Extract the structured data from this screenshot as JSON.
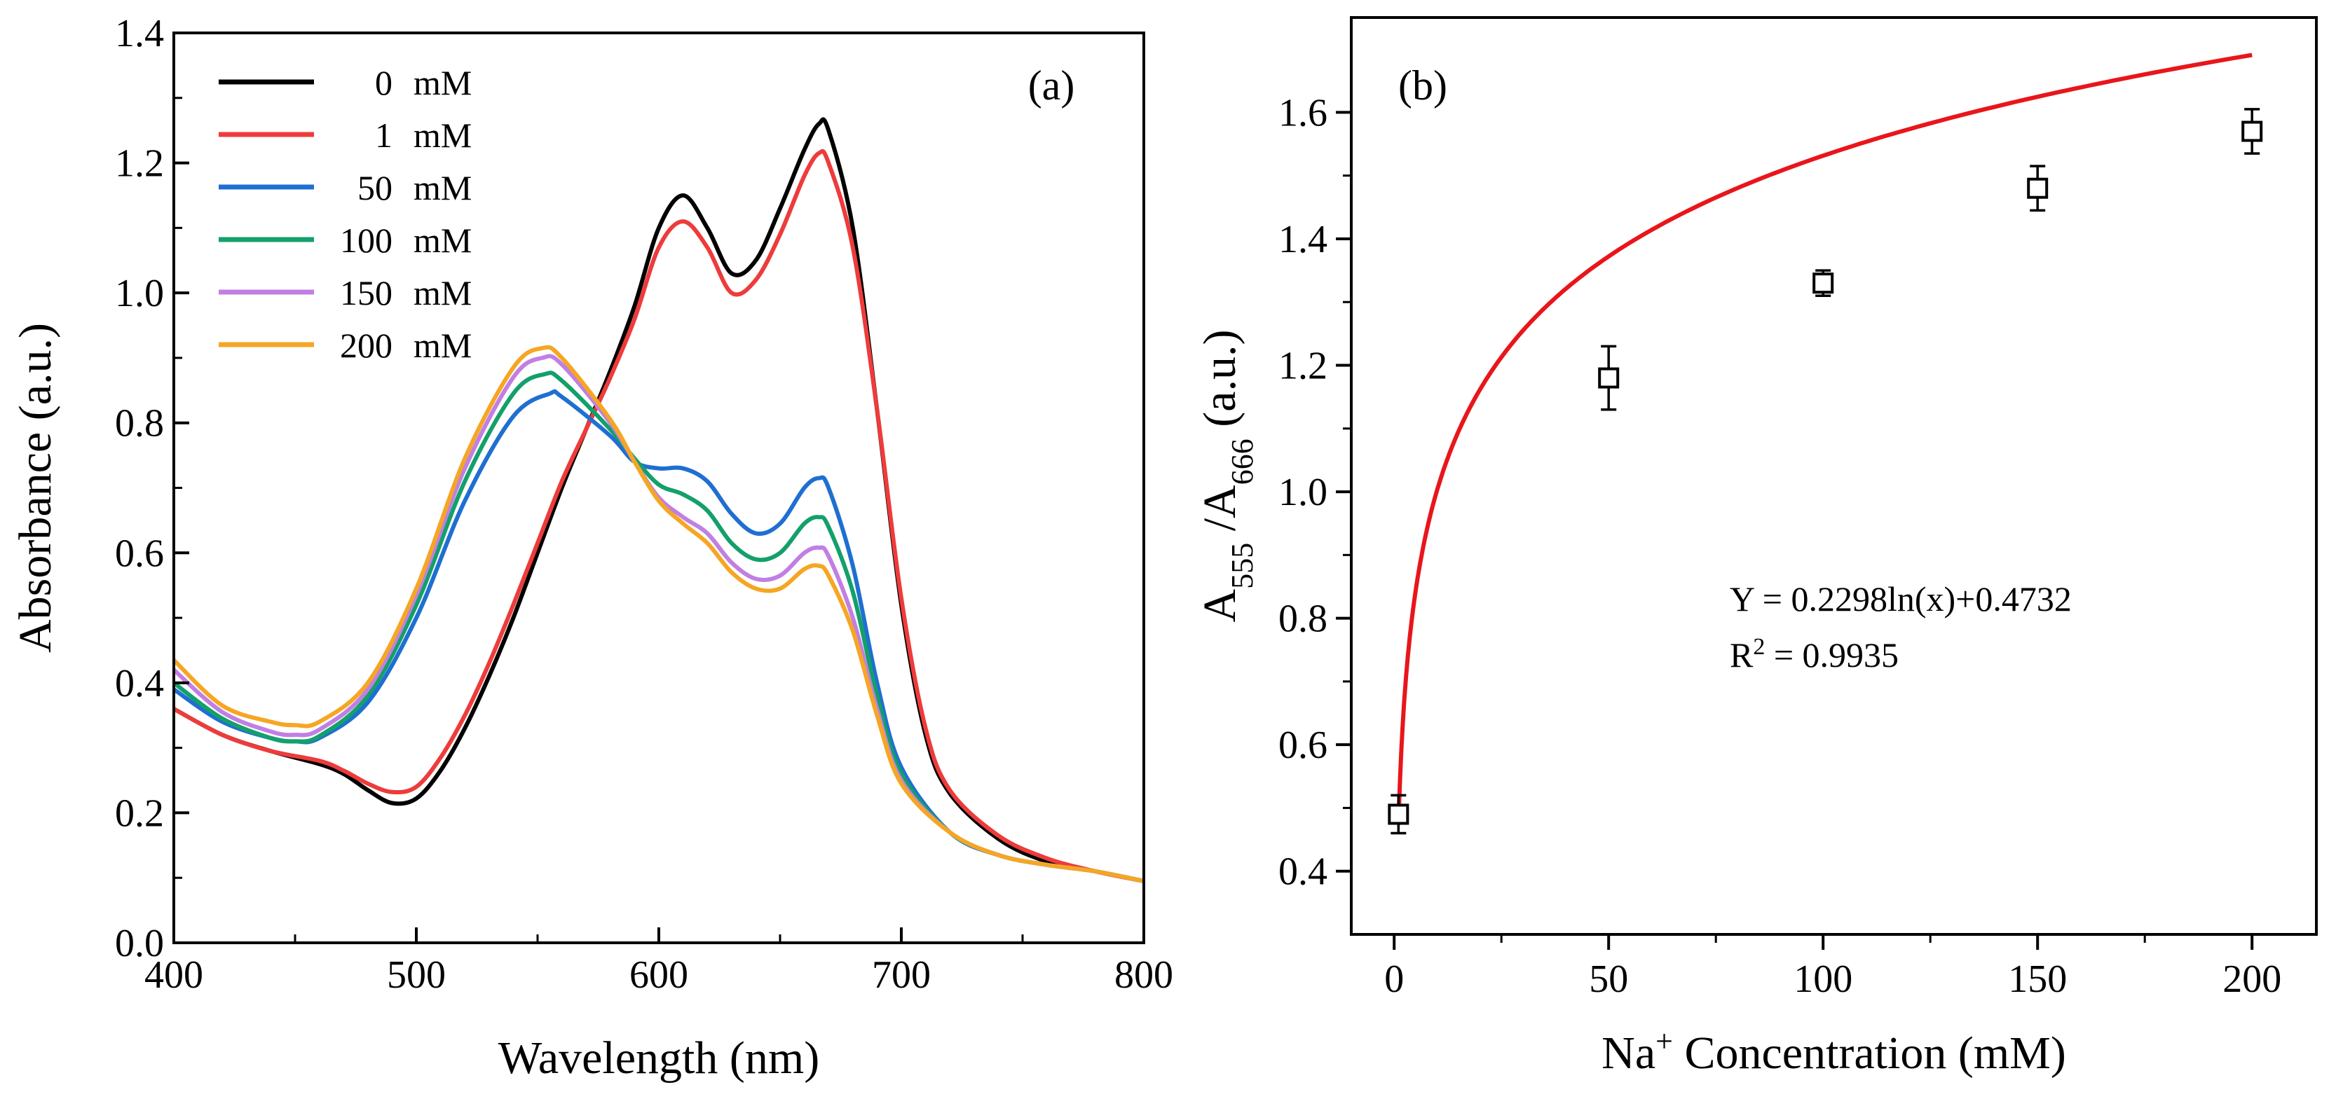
{
  "chart_data": [
    {
      "panel": "(a)",
      "type": "line",
      "xlabel": "Wavelength (nm)",
      "ylabel": "Absorbance (a.u.)",
      "xlim": [
        400,
        800
      ],
      "ylim": [
        0.0,
        1.4
      ],
      "xticks": [
        400,
        500,
        600,
        700,
        800
      ],
      "yticks": [
        0.0,
        0.2,
        0.4,
        0.6,
        0.8,
        1.0,
        1.2,
        1.4
      ],
      "xtick_labels": [
        "400",
        "500",
        "600",
        "700",
        "800"
      ],
      "ytick_labels": [
        "0.0",
        "0.2",
        "0.4",
        "0.6",
        "0.8",
        "1.0",
        "1.2",
        "1.4"
      ],
      "legend_position": "top-left",
      "series": [
        {
          "name": "0",
          "unit": "mM",
          "color": "#000000",
          "x": [
            400,
            420,
            440,
            460,
            470,
            480,
            490,
            500,
            510,
            520,
            530,
            540,
            550,
            560,
            570,
            580,
            590,
            600,
            610,
            620,
            630,
            640,
            650,
            660,
            666,
            670,
            680,
            690,
            700,
            710,
            720,
            740,
            760,
            780,
            800
          ],
          "y": [
            0.36,
            0.32,
            0.295,
            0.275,
            0.26,
            0.235,
            0.215,
            0.222,
            0.265,
            0.33,
            0.41,
            0.5,
            0.6,
            0.7,
            0.79,
            0.88,
            0.98,
            1.1,
            1.15,
            1.1,
            1.03,
            1.05,
            1.13,
            1.22,
            1.26,
            1.25,
            1.1,
            0.82,
            0.52,
            0.32,
            0.23,
            0.16,
            0.125,
            0.11,
            0.095
          ]
        },
        {
          "name": "1",
          "unit": "mM",
          "color": "#EE3B3B",
          "x": [
            400,
            420,
            440,
            460,
            470,
            480,
            490,
            500,
            510,
            520,
            530,
            540,
            550,
            560,
            570,
            580,
            590,
            600,
            610,
            620,
            630,
            640,
            650,
            660,
            666,
            670,
            680,
            690,
            700,
            710,
            720,
            740,
            760,
            780,
            800
          ],
          "y": [
            0.36,
            0.32,
            0.295,
            0.28,
            0.265,
            0.245,
            0.232,
            0.24,
            0.285,
            0.35,
            0.43,
            0.52,
            0.615,
            0.71,
            0.79,
            0.87,
            0.96,
            1.07,
            1.11,
            1.07,
            1.0,
            1.02,
            1.09,
            1.18,
            1.215,
            1.2,
            1.07,
            0.82,
            0.53,
            0.33,
            0.235,
            0.165,
            0.13,
            0.11,
            0.095
          ]
        },
        {
          "name": "50",
          "unit": "mM",
          "color": "#1F6FD1",
          "x": [
            400,
            420,
            440,
            450,
            460,
            480,
            500,
            520,
            540,
            555,
            560,
            580,
            590,
            600,
            610,
            620,
            630,
            640,
            650,
            660,
            666,
            670,
            680,
            690,
            700,
            720,
            740,
            760,
            780,
            800
          ],
          "y": [
            0.39,
            0.34,
            0.315,
            0.31,
            0.315,
            0.37,
            0.5,
            0.68,
            0.81,
            0.845,
            0.84,
            0.78,
            0.74,
            0.73,
            0.73,
            0.71,
            0.66,
            0.63,
            0.645,
            0.7,
            0.715,
            0.7,
            0.58,
            0.4,
            0.27,
            0.17,
            0.135,
            0.12,
            0.11,
            0.095
          ]
        },
        {
          "name": "100",
          "unit": "mM",
          "color": "#13A06A",
          "x": [
            400,
            420,
            440,
            450,
            460,
            480,
            500,
            520,
            540,
            553,
            560,
            580,
            590,
            600,
            610,
            620,
            630,
            640,
            650,
            660,
            666,
            670,
            680,
            690,
            700,
            720,
            740,
            760,
            780,
            800
          ],
          "y": [
            0.4,
            0.345,
            0.315,
            0.31,
            0.318,
            0.38,
            0.52,
            0.71,
            0.845,
            0.875,
            0.865,
            0.79,
            0.745,
            0.705,
            0.69,
            0.665,
            0.615,
            0.59,
            0.6,
            0.645,
            0.655,
            0.64,
            0.54,
            0.38,
            0.26,
            0.17,
            0.135,
            0.12,
            0.11,
            0.095
          ]
        },
        {
          "name": "150",
          "unit": "mM",
          "color": "#C17FE3",
          "x": [
            400,
            420,
            440,
            450,
            460,
            480,
            500,
            520,
            540,
            552,
            560,
            580,
            590,
            600,
            610,
            620,
            630,
            640,
            650,
            660,
            666,
            670,
            680,
            690,
            700,
            720,
            740,
            760,
            780,
            800
          ],
          "y": [
            0.42,
            0.355,
            0.325,
            0.32,
            0.328,
            0.39,
            0.535,
            0.73,
            0.87,
            0.9,
            0.89,
            0.8,
            0.74,
            0.685,
            0.655,
            0.63,
            0.585,
            0.56,
            0.565,
            0.6,
            0.608,
            0.595,
            0.5,
            0.36,
            0.25,
            0.17,
            0.135,
            0.12,
            0.11,
            0.095
          ]
        },
        {
          "name": "200",
          "unit": "mM",
          "color": "#F5A623",
          "x": [
            400,
            420,
            440,
            450,
            460,
            480,
            500,
            520,
            540,
            552,
            560,
            580,
            590,
            600,
            610,
            620,
            630,
            640,
            650,
            660,
            666,
            670,
            680,
            690,
            700,
            720,
            740,
            760,
            780,
            800
          ],
          "y": [
            0.435,
            0.365,
            0.34,
            0.335,
            0.34,
            0.4,
            0.545,
            0.745,
            0.885,
            0.915,
            0.9,
            0.805,
            0.74,
            0.68,
            0.645,
            0.615,
            0.57,
            0.545,
            0.545,
            0.575,
            0.58,
            0.565,
            0.48,
            0.35,
            0.245,
            0.17,
            0.135,
            0.12,
            0.11,
            0.095
          ]
        }
      ]
    },
    {
      "panel": "(b)",
      "type": "scatter",
      "xlabel_main": "Na",
      "xlabel_sup": "+",
      "xlabel_rest": " Concentration (mM)",
      "ylabel_a": "A",
      "ylabel_sub1": "555",
      "ylabel_slash": " /A",
      "ylabel_sub2": "666",
      "ylabel_rest": " (a.u.)",
      "xlim": [
        -10,
        215
      ],
      "ylim": [
        0.3,
        1.75
      ],
      "xticks": [
        0,
        50,
        100,
        150,
        200
      ],
      "yticks": [
        0.4,
        0.6,
        0.8,
        1.0,
        1.2,
        1.4,
        1.6
      ],
      "xtick_labels": [
        "0",
        "50",
        "100",
        "150",
        "200"
      ],
      "ytick_labels": [
        "0.4",
        "0.6",
        "0.8",
        "1.0",
        "1.2",
        "1.4",
        "1.6"
      ],
      "points": {
        "x": [
          1,
          50,
          100,
          150,
          200
        ],
        "y": [
          0.49,
          1.18,
          1.33,
          1.48,
          1.57
        ],
        "error": [
          0.03,
          0.05,
          0.02,
          0.035,
          0.035
        ]
      },
      "fit": {
        "color": "#E8161B",
        "a": 0.2298,
        "b": 0.4732,
        "x_range": [
          1,
          200
        ],
        "equation": "Y = 0.2298ln(x)+0.4732",
        "r2_prefix": "R",
        "r2_sup": "2",
        "r2_value": " = 0.9935"
      }
    }
  ]
}
